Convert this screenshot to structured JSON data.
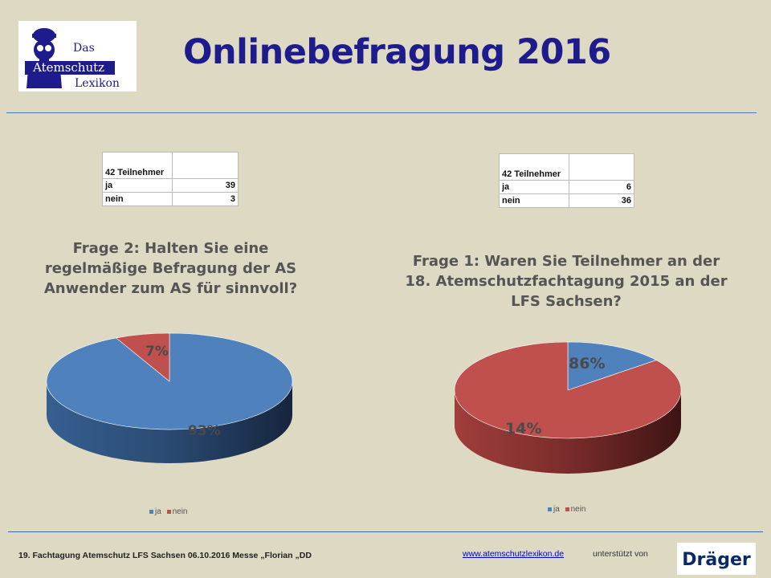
{
  "title": "Onlinebefragung 2016",
  "logo": {
    "line1": "Das",
    "line2": "Atemschutz",
    "line3": "Lexikon",
    "icon": "firefighter-mask-icon"
  },
  "colors": {
    "ja": "#4f81bd",
    "nein": "#c0504d",
    "title": "#1e1b8c",
    "background": "#ddd9c3"
  },
  "chart_data": [
    {
      "type": "pie",
      "title": "Frage 2: Halten Sie eine regelmäßige Befragung der AS Anwender zum AS für sinnvoll?",
      "table": {
        "header": "42 Teilnehmer",
        "rows": [
          {
            "label": "ja",
            "value": "39"
          },
          {
            "label": "nein",
            "value": "3"
          }
        ]
      },
      "categories": [
        "ja",
        "nein"
      ],
      "values": [
        39,
        3
      ],
      "data_labels": [
        "93%",
        "7%"
      ],
      "legend": [
        "ja",
        "nein"
      ],
      "legend_position": "bottom"
    },
    {
      "type": "pie",
      "title": "Frage 1: Waren Sie Teilnehmer an der 18. Atemschutzfachtagung 2015 an der LFS Sachsen?",
      "table": {
        "header": "42 Teilnehmer",
        "rows": [
          {
            "label": "ja",
            "value": "6"
          },
          {
            "label": "nein",
            "value": "36"
          }
        ]
      },
      "categories": [
        "ja",
        "nein"
      ],
      "values": [
        6,
        36
      ],
      "data_labels": [
        "14%",
        "86%"
      ],
      "legend": [
        "ja",
        "nein"
      ],
      "legend_position": "bottom"
    }
  ],
  "footer": {
    "event": "19. Fachtagung Atemschutz LFS Sachsen  06.10.2016 Messe „Florian „DD",
    "link": "www.atemschutzlexikon.de",
    "supported": "unterstützt von",
    "sponsor": "Dräger"
  }
}
